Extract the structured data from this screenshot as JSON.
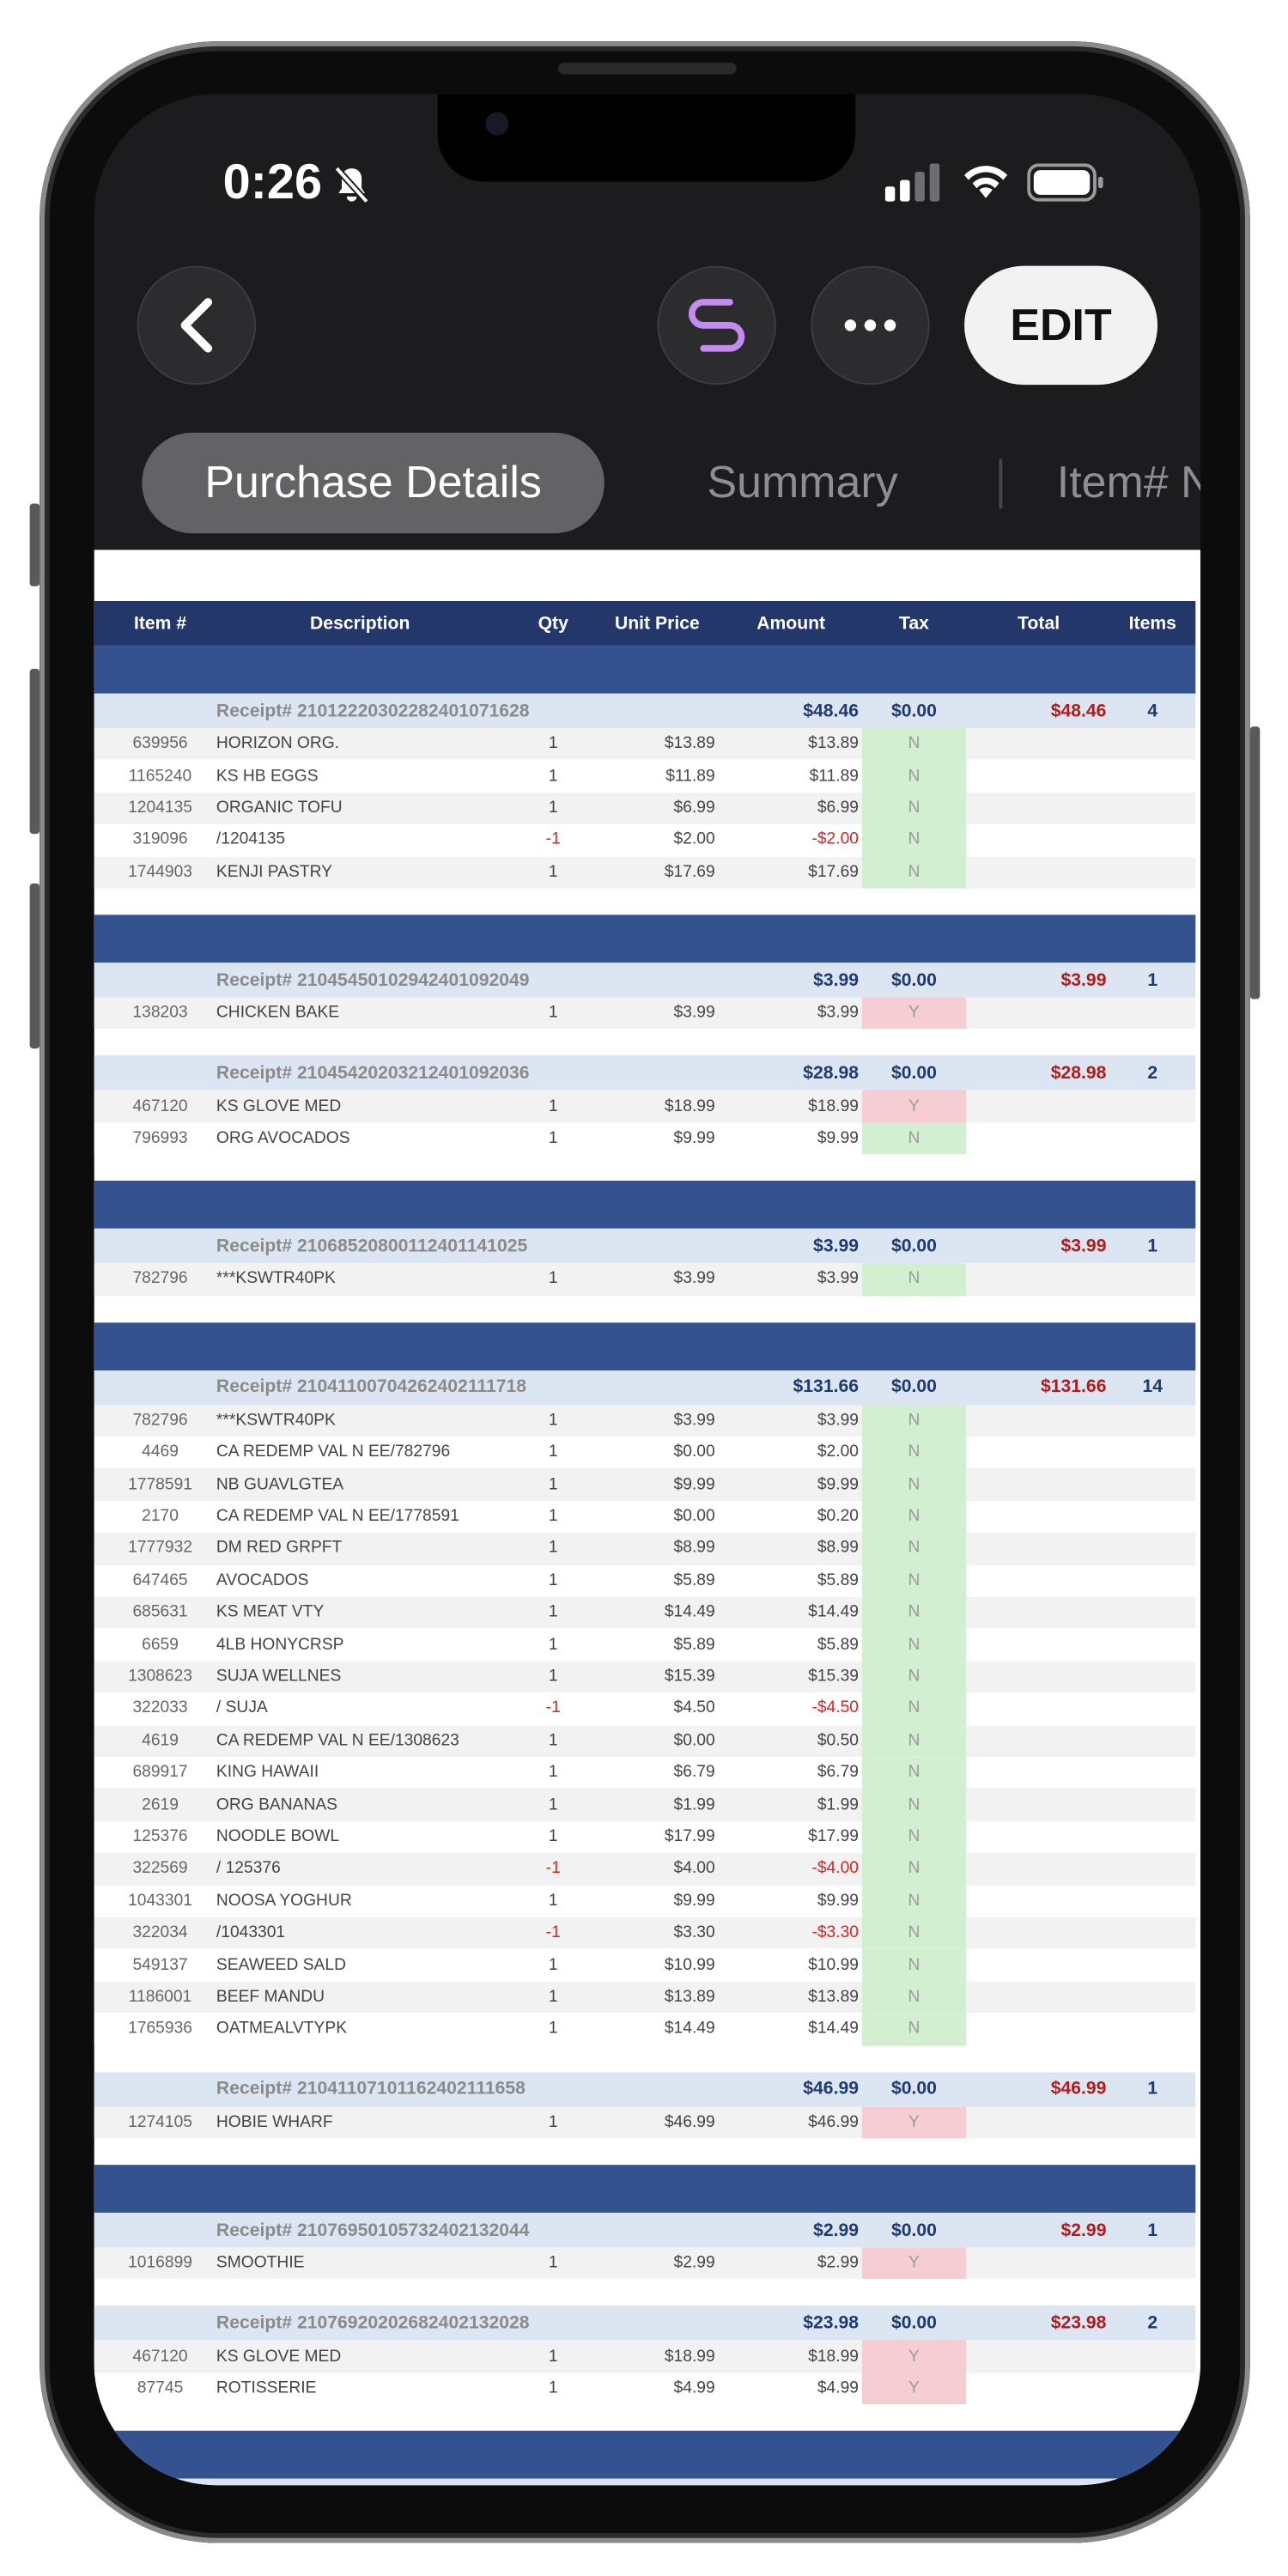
{
  "status_bar": {
    "time": "0:26"
  },
  "toolbar": {
    "edit": "EDIT"
  },
  "tabs": [
    "Purchase Details",
    "Summary",
    "Item# N"
  ],
  "table": {
    "columns": [
      "Item #",
      "Description",
      "Qty",
      "Unit Price",
      "Amount",
      "Tax",
      "Total",
      "Items"
    ],
    "groups": [
      {
        "receipts": [
          {
            "label": "Receipt# 21012220302282401071628",
            "amount": "$48.46",
            "tax": "$0.00",
            "total": "$48.46",
            "items": "4",
            "rows": [
              [
                "639956",
                "HORIZON ORG.",
                "1",
                "$13.89",
                "$13.89",
                "N"
              ],
              [
                "1165240",
                "KS HB EGGS",
                "1",
                "$11.89",
                "$11.89",
                "N"
              ],
              [
                "1204135",
                "ORGANIC TOFU",
                "1",
                "$6.99",
                "$6.99",
                "N"
              ],
              [
                "319096",
                "/1204135",
                "-1",
                "$2.00",
                "-$2.00",
                "N"
              ],
              [
                "1744903",
                "KENJI PASTRY",
                "1",
                "$17.69",
                "$17.69",
                "N"
              ]
            ]
          }
        ]
      },
      {
        "receipts": [
          {
            "label": "Receipt# 21045450102942401092049",
            "amount": "$3.99",
            "tax": "$0.00",
            "total": "$3.99",
            "items": "1",
            "rows": [
              [
                "138203",
                "CHICKEN BAKE",
                "1",
                "$3.99",
                "$3.99",
                "Y"
              ]
            ]
          },
          {
            "label": "Receipt# 21045420203212401092036",
            "amount": "$28.98",
            "tax": "$0.00",
            "total": "$28.98",
            "items": "2",
            "rows": [
              [
                "467120",
                "KS GLOVE MED",
                "1",
                "$18.99",
                "$18.99",
                "Y"
              ],
              [
                "796993",
                "ORG AVOCADOS",
                "1",
                "$9.99",
                "$9.99",
                "N"
              ]
            ]
          }
        ]
      },
      {
        "receipts": [
          {
            "label": "Receipt# 21068520800112401141025",
            "amount": "$3.99",
            "tax": "$0.00",
            "total": "$3.99",
            "items": "1",
            "rows": [
              [
                "782796",
                "***KSWTR40PK",
                "1",
                "$3.99",
                "$3.99",
                "N"
              ]
            ]
          }
        ]
      },
      {
        "receipts": [
          {
            "label": "Receipt# 21041100704262402111718",
            "amount": "$131.66",
            "tax": "$0.00",
            "total": "$131.66",
            "items": "14",
            "rows": [
              [
                "782796",
                "***KSWTR40PK",
                "1",
                "$3.99",
                "$3.99",
                "N"
              ],
              [
                "4469",
                "CA REDEMP VAL N EE/782796",
                "1",
                "$0.00",
                "$2.00",
                "N"
              ],
              [
                "1778591",
                "NB GUAVLGTEA",
                "1",
                "$9.99",
                "$9.99",
                "N"
              ],
              [
                "2170",
                "CA REDEMP VAL N EE/1778591",
                "1",
                "$0.00",
                "$0.20",
                "N"
              ],
              [
                "1777932",
                "DM RED GRPFT",
                "1",
                "$8.99",
                "$8.99",
                "N"
              ],
              [
                "647465",
                "AVOCADOS",
                "1",
                "$5.89",
                "$5.89",
                "N"
              ],
              [
                "685631",
                "KS MEAT VTY",
                "1",
                "$14.49",
                "$14.49",
                "N"
              ],
              [
                "6659",
                "4LB HONYCRSP",
                "1",
                "$5.89",
                "$5.89",
                "N"
              ],
              [
                "1308623",
                "SUJA WELLNES",
                "1",
                "$15.39",
                "$15.39",
                "N"
              ],
              [
                "322033",
                "/ SUJA",
                "-1",
                "$4.50",
                "-$4.50",
                "N"
              ],
              [
                "4619",
                "CA REDEMP VAL N EE/1308623",
                "1",
                "$0.00",
                "$0.50",
                "N"
              ],
              [
                "689917",
                "KING HAWAII",
                "1",
                "$6.79",
                "$6.79",
                "N"
              ],
              [
                "2619",
                "ORG BANANAS",
                "1",
                "$1.99",
                "$1.99",
                "N"
              ],
              [
                "125376",
                "NOODLE BOWL",
                "1",
                "$17.99",
                "$17.99",
                "N"
              ],
              [
                "322569",
                "/ 125376",
                "-1",
                "$4.00",
                "-$4.00",
                "N"
              ],
              [
                "1043301",
                "NOOSA YOGHUR",
                "1",
                "$9.99",
                "$9.99",
                "N"
              ],
              [
                "322034",
                "/1043301",
                "-1",
                "$3.30",
                "-$3.30",
                "N"
              ],
              [
                "549137",
                "SEAWEED SALD",
                "1",
                "$10.99",
                "$10.99",
                "N"
              ],
              [
                "1186001",
                "BEEF MANDU",
                "1",
                "$13.89",
                "$13.89",
                "N"
              ],
              [
                "1765936",
                "OATMEALVTYPK",
                "1",
                "$14.49",
                "$14.49",
                "N"
              ]
            ]
          },
          {
            "label": "Receipt# 21041107101162402111658",
            "amount": "$46.99",
            "tax": "$0.00",
            "total": "$46.99",
            "items": "1",
            "rows": [
              [
                "1274105",
                "HOBIE WHARF",
                "1",
                "$46.99",
                "$46.99",
                "Y"
              ]
            ]
          }
        ]
      },
      {
        "receipts": [
          {
            "label": "Receipt# 21076950105732402132044",
            "amount": "$2.99",
            "tax": "$0.00",
            "total": "$2.99",
            "items": "1",
            "rows": [
              [
                "1016899",
                "SMOOTHIE",
                "1",
                "$2.99",
                "$2.99",
                "Y"
              ]
            ]
          },
          {
            "label": "Receipt# 21076920202682402132028",
            "amount": "$23.98",
            "tax": "$0.00",
            "total": "$23.98",
            "items": "2",
            "rows": [
              [
                "467120",
                "KS GLOVE MED",
                "1",
                "$18.99",
                "$18.99",
                "Y"
              ],
              [
                "87745",
                "ROTISSERIE",
                "1",
                "$4.99",
                "$4.99",
                "Y"
              ]
            ]
          }
        ]
      }
    ]
  }
}
